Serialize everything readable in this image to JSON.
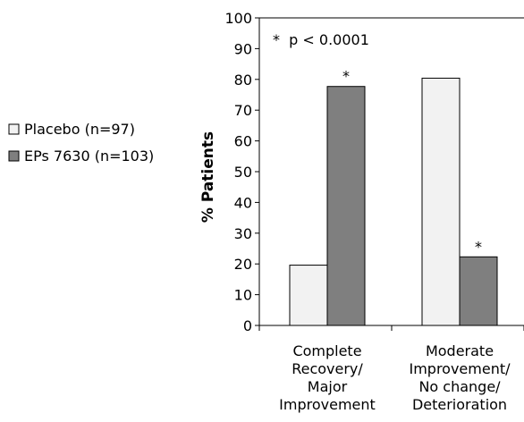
{
  "chart_data": {
    "type": "bar",
    "title": "",
    "xlabel": "",
    "ylabel": "% Patients",
    "ylim": [
      0,
      100
    ],
    "yticks": [
      0,
      10,
      20,
      30,
      40,
      50,
      60,
      70,
      80,
      90,
      100
    ],
    "grid": false,
    "legend_position": "left",
    "categories": [
      [
        "Complete",
        "Recovery/",
        "Major",
        "Improvement"
      ],
      [
        "Moderate",
        "Improvement/",
        "No change/",
        "Deterioration"
      ]
    ],
    "series": [
      {
        "name": "Placebo (n=97)",
        "values": [
          19.6,
          80.4
        ],
        "color": "#f2f2f2",
        "marker": "□"
      },
      {
        "name": "EPs 7630 (n=103)",
        "values": [
          77.7,
          22.3
        ],
        "color": "#7f7f7f",
        "marker": "■"
      }
    ],
    "significance_marker": "*",
    "significant": [
      [
        false,
        true
      ],
      [
        false,
        true
      ]
    ],
    "annotation": "*  p < 0.0001"
  }
}
